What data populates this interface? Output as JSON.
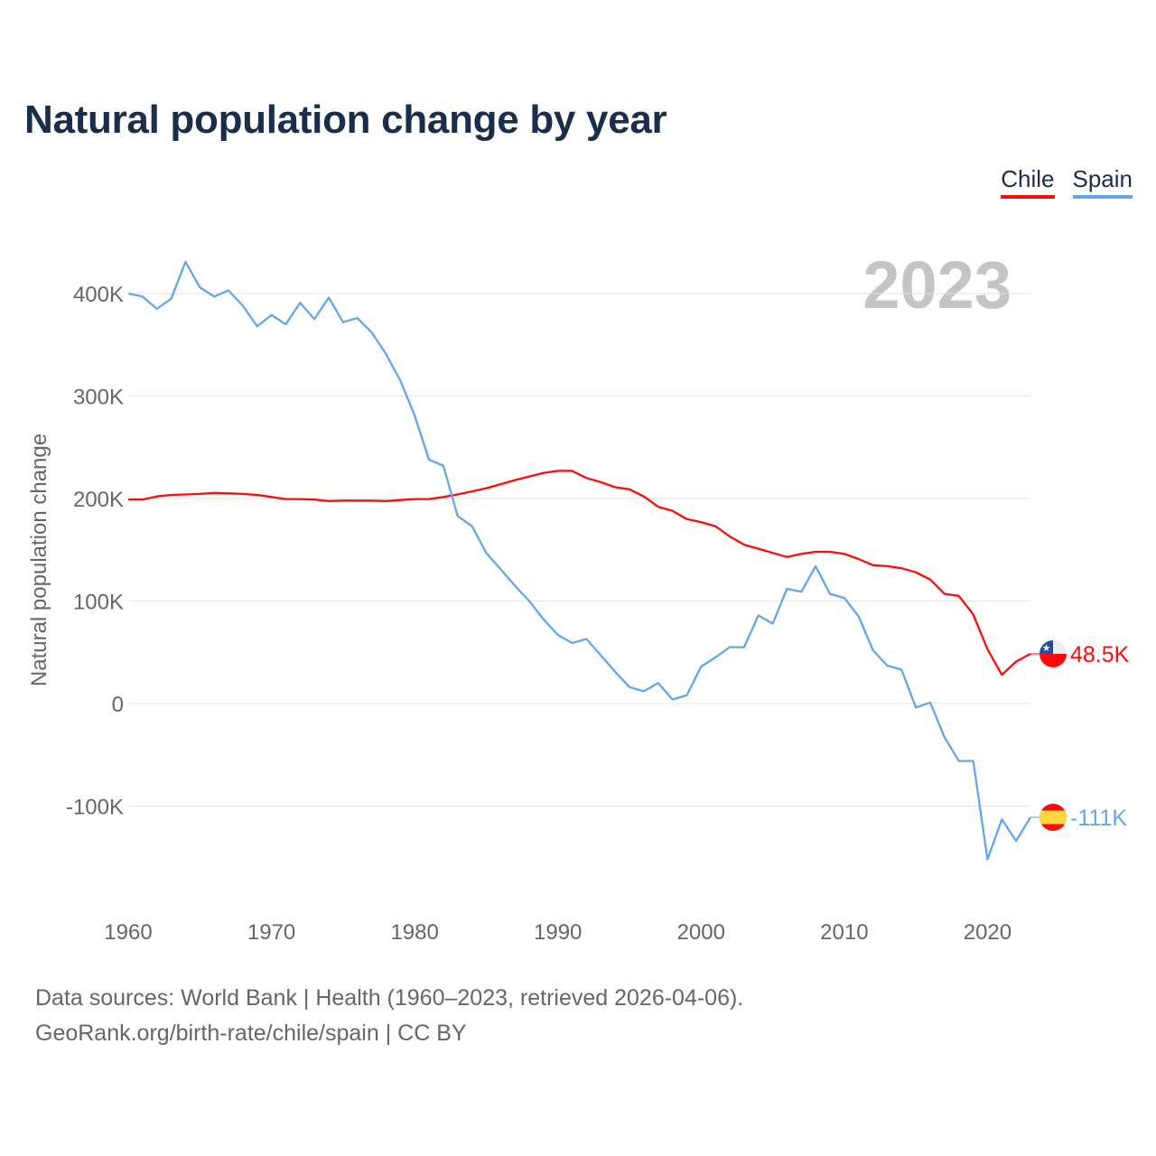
{
  "chart_data": {
    "type": "line",
    "title": "Natural population change by year",
    "xlabel": "",
    "ylabel": "Natural population change",
    "year_label": "2023",
    "xlim": [
      1960,
      2023
    ],
    "ylim": [
      -170000,
      440000
    ],
    "x_ticks": [
      1960,
      1970,
      1980,
      1990,
      2000,
      2010,
      2020
    ],
    "y_ticks": [
      {
        "value": -100000,
        "label": "-100K"
      },
      {
        "value": 0,
        "label": "0"
      },
      {
        "value": 100000,
        "label": "100K"
      },
      {
        "value": 200000,
        "label": "200K"
      },
      {
        "value": 300000,
        "label": "300K"
      },
      {
        "value": 400000,
        "label": "400K"
      }
    ],
    "grid": true,
    "legend_position": "top-right",
    "x_start": 1960,
    "series": [
      {
        "name": "Chile",
        "color": "#ff0a0a",
        "flag": "chile-flag",
        "end_label": "48.5K",
        "values": [
          199000,
          199000,
          202000,
          203500,
          204000,
          204500,
          205500,
          205000,
          204500,
          203500,
          201500,
          199500,
          199500,
          199000,
          197500,
          198000,
          198000,
          198000,
          197500,
          198500,
          199500,
          199500,
          201500,
          204000,
          207000,
          210000,
          214000,
          218000,
          221500,
          225000,
          227000,
          227000,
          220000,
          216000,
          211000,
          209000,
          202000,
          192000,
          188000,
          180000,
          177000,
          173000,
          163000,
          155000,
          151000,
          147000,
          143000,
          146000,
          148000,
          148000,
          146000,
          141000,
          135000,
          134000,
          132000,
          128000,
          121000,
          107000,
          105000,
          87000,
          53000,
          28000,
          41000,
          48500
        ]
      },
      {
        "name": "Spain",
        "color": "#62a7eb",
        "flag": "spain-flag",
        "end_label": "-111K",
        "values": [
          400000,
          397000,
          385000,
          395000,
          431000,
          406000,
          397000,
          403000,
          388000,
          368000,
          379000,
          370000,
          391000,
          375000,
          396000,
          372000,
          376000,
          362000,
          341000,
          315000,
          281000,
          238000,
          232000,
          183000,
          173000,
          147000,
          131000,
          115000,
          100000,
          82000,
          67000,
          59000,
          63000,
          47000,
          31000,
          16000,
          12000,
          20000,
          4000,
          8000,
          36000,
          45000,
          55000,
          55000,
          86000,
          78000,
          112000,
          109000,
          134000,
          107000,
          103000,
          85000,
          52000,
          37000,
          33000,
          -4000,
          1000,
          -33000,
          -56000,
          -56000,
          -152000,
          -113000,
          -134000,
          -111000
        ]
      }
    ]
  },
  "footer": {
    "line1": "Data sources: World Bank | Health (1960–2023, retrieved 2026-04-06).",
    "line2": "GeoRank.org/birth-rate/chile/spain | CC BY"
  }
}
